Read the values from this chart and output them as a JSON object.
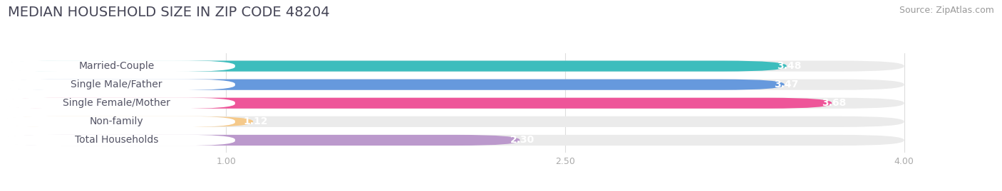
{
  "title": "MEDIAN HOUSEHOLD SIZE IN ZIP CODE 48204",
  "source": "Source: ZipAtlas.com",
  "categories": [
    "Married-Couple",
    "Single Male/Father",
    "Single Female/Mother",
    "Non-family",
    "Total Households"
  ],
  "values": [
    3.48,
    3.47,
    3.68,
    1.12,
    2.3
  ],
  "bar_colors": [
    "#3dbdbd",
    "#6699dd",
    "#ee5599",
    "#f5c98a",
    "#bb99cc"
  ],
  "xlim_min": 0.0,
  "xlim_max": 4.3,
  "data_min": 0.0,
  "data_max": 4.0,
  "xticks": [
    1.0,
    2.5,
    4.0
  ],
  "background_color": "#ffffff",
  "bar_bg_color": "#ebebeb",
  "title_fontsize": 14,
  "source_fontsize": 9,
  "label_fontsize": 10,
  "value_fontsize": 10,
  "label_text_color": "#555566",
  "tick_color": "#aaaaaa"
}
